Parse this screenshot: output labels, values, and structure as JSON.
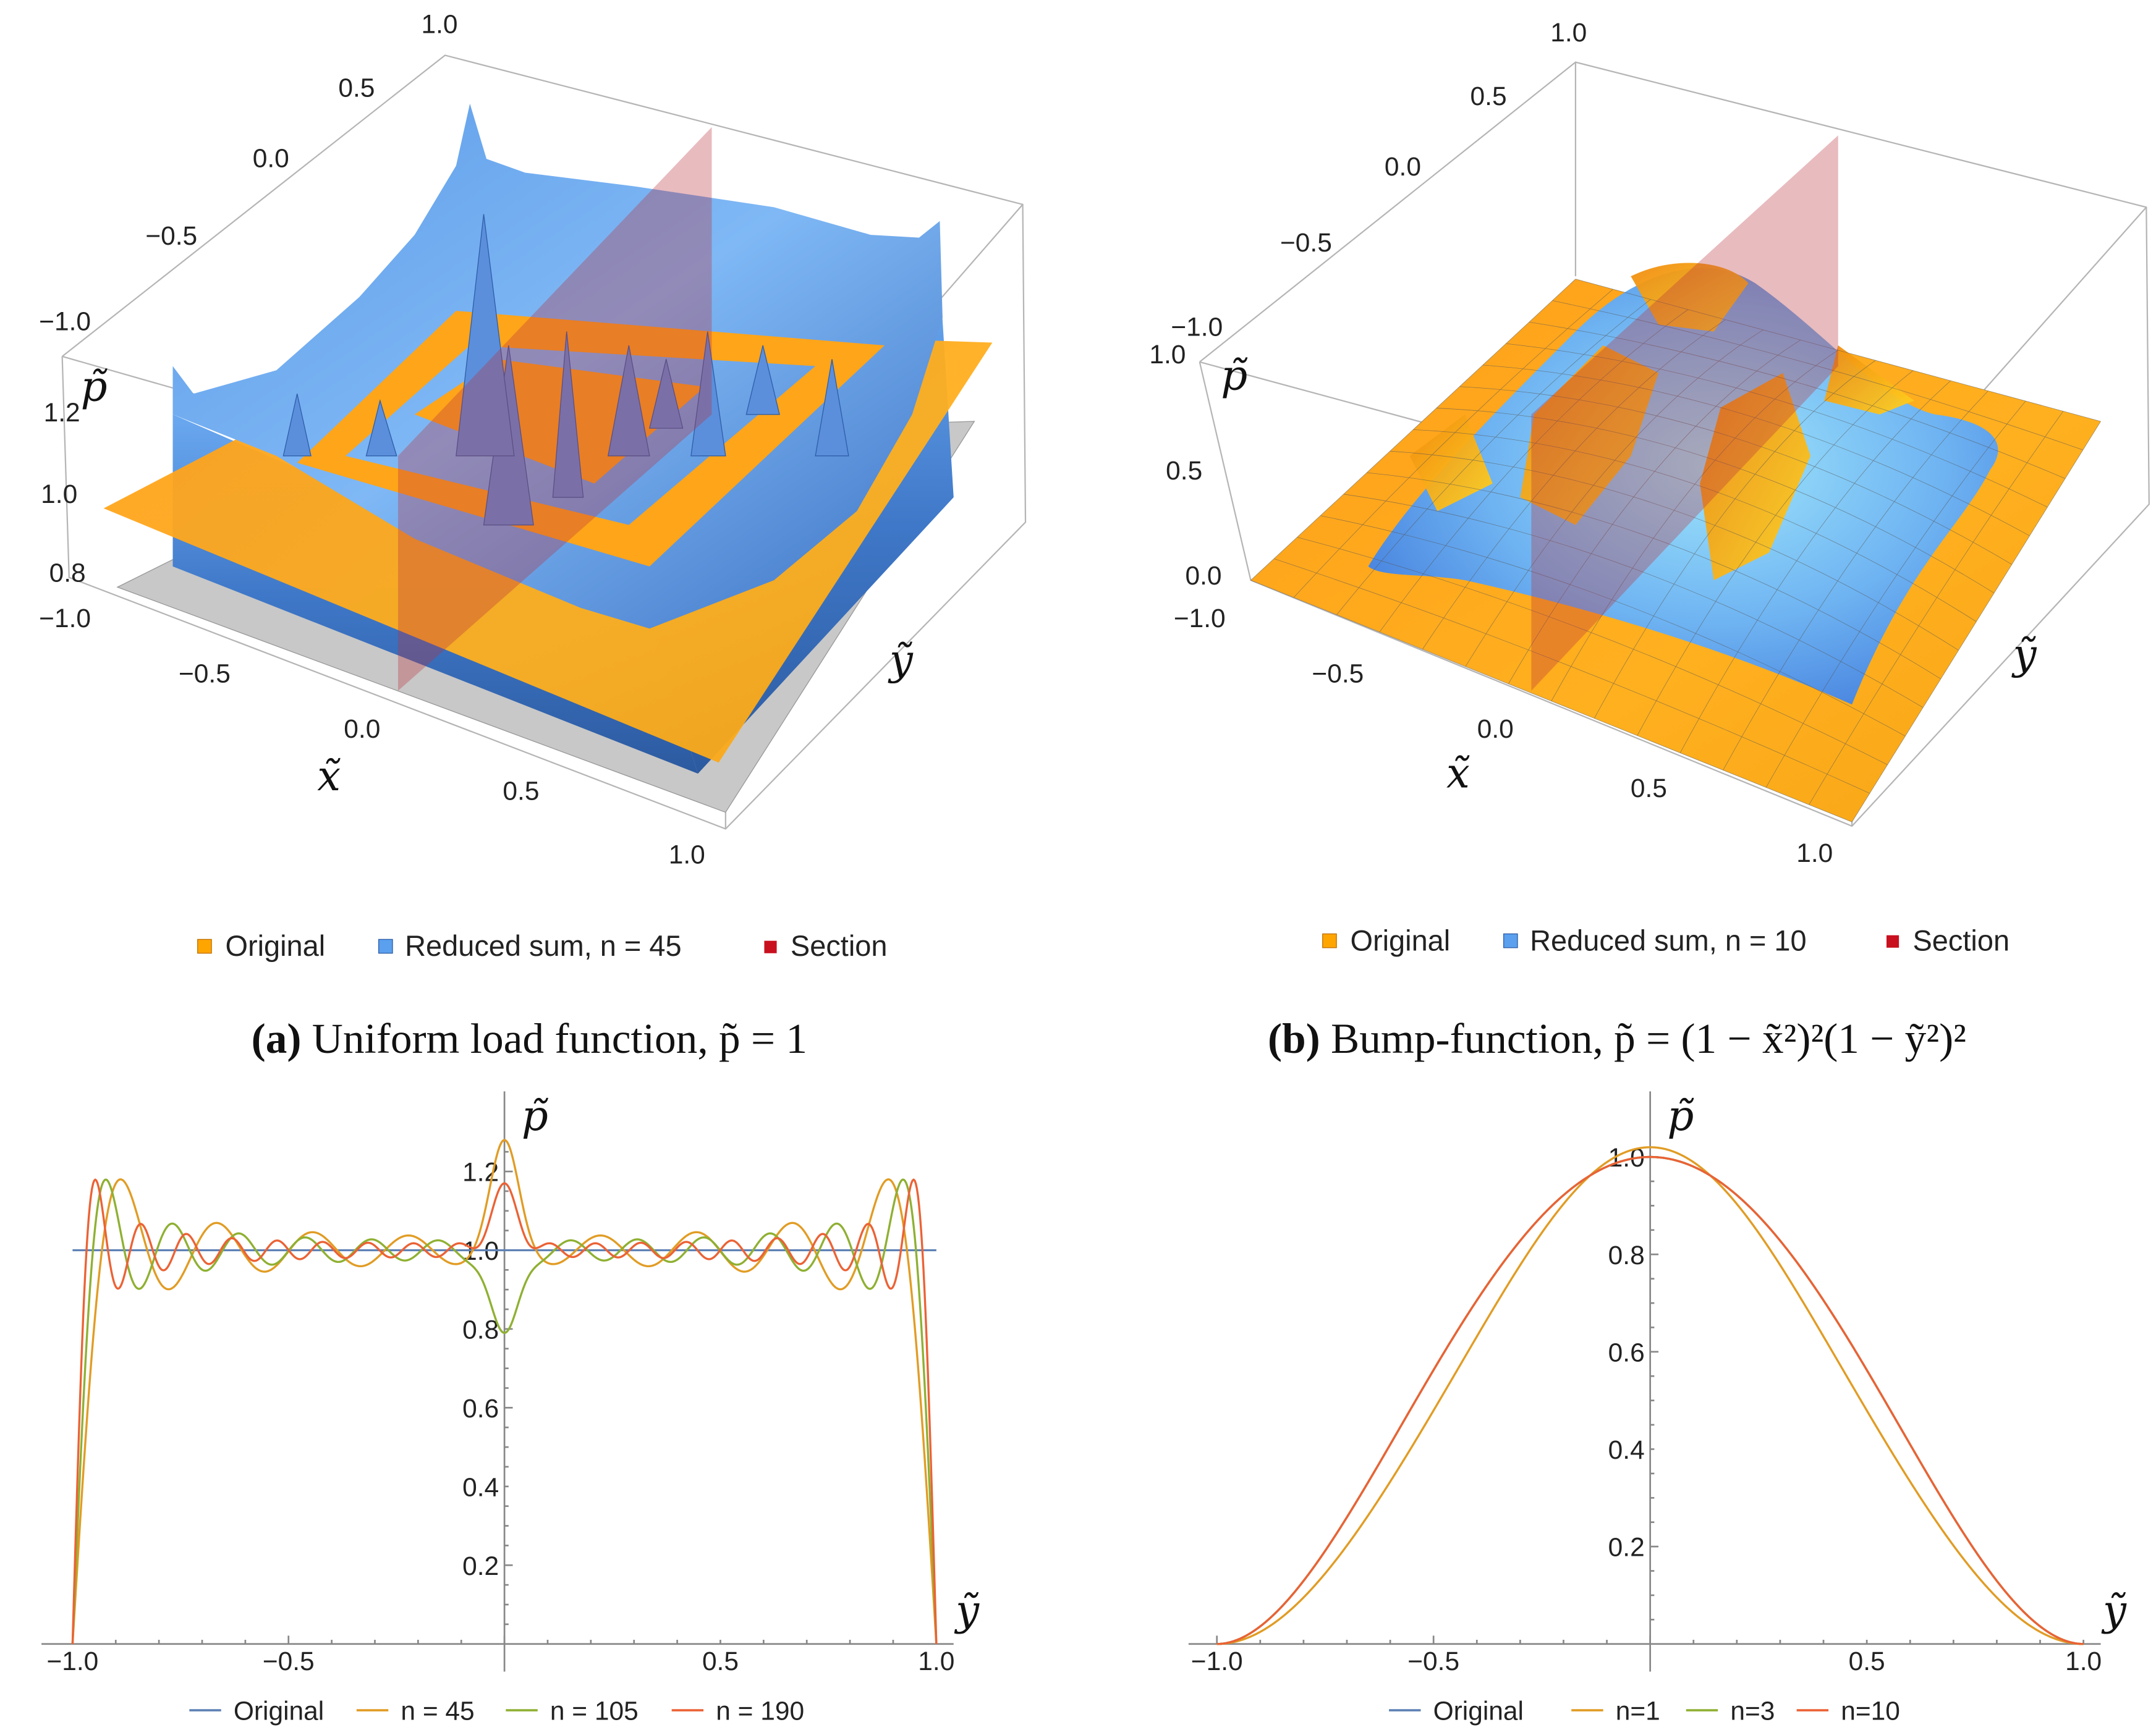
{
  "colors": {
    "original": "#5e81b5",
    "orange": "#e19c24",
    "green": "#8fb032",
    "red": "#eb6235",
    "surface_orange": "#ffa500",
    "surface_blue": "#4f8fe6",
    "section": "#c0303c",
    "floor": "#c8c8c8"
  },
  "panel_a": {
    "caption_label": "(a)",
    "caption_text": "Uniform load function, p̃ = 1",
    "axis_x": "x̃",
    "axis_y": "ỹ",
    "axis_z": "p̃",
    "x_ticks": [
      "−1.0",
      "−0.5",
      "0.0",
      "0.5",
      "1.0"
    ],
    "y_ticks": [
      "−1.0",
      "−0.5",
      "0.0",
      "0.5",
      "1.0"
    ],
    "z_ticks": [
      "0.8",
      "1.0",
      "1.2"
    ],
    "legend": [
      "Original",
      "Reduced sum, n = 45",
      "Section"
    ]
  },
  "panel_b": {
    "caption_label": "(b)",
    "caption_text": "Bump-function, p̃ = (1 − x̃²)²(1 − ỹ²)²",
    "axis_x": "x̃",
    "axis_y": "ỹ",
    "axis_z": "p̃",
    "x_ticks": [
      "−1.0",
      "−0.5",
      "0.0",
      "0.5",
      "1.0"
    ],
    "y_ticks": [
      "−1.0",
      "−0.5",
      "0.0",
      "0.5",
      "1.0"
    ],
    "z_ticks": [
      "0.0",
      "0.5",
      "1.0"
    ],
    "legend": [
      "Original",
      "Reduced sum, n = 10",
      "Section"
    ]
  },
  "chart_data": [
    {
      "type": "surface3d",
      "title": "Uniform load function, p̃ = 1",
      "xlabel": "x̃",
      "ylabel": "ỹ",
      "zlabel": "p̃",
      "xlim": [
        -1,
        1
      ],
      "ylim": [
        -1,
        1
      ],
      "zlim": [
        0.75,
        1.3
      ],
      "series": [
        {
          "name": "Original",
          "value": 1
        },
        {
          "name": "Reduced sum, n = 45"
        },
        {
          "name": "Section",
          "x": 0
        }
      ]
    },
    {
      "type": "surface3d",
      "title": "Bump-function",
      "xlabel": "x̃",
      "ylabel": "ỹ",
      "zlabel": "p̃",
      "xlim": [
        -1,
        1
      ],
      "ylim": [
        -1,
        1
      ],
      "zlim": [
        0,
        1
      ],
      "series": [
        {
          "name": "Original"
        },
        {
          "name": "Reduced sum, n = 10"
        },
        {
          "name": "Section",
          "x": 0
        }
      ]
    },
    {
      "type": "line",
      "xlabel": "ỹ",
      "ylabel": "p̃",
      "xlim": [
        -1,
        1
      ],
      "ylim": [
        0,
        1.3
      ],
      "x_ticks": [
        "−1.0",
        "−0.5",
        "0.5",
        "1.0"
      ],
      "x_tick_values": [
        -1,
        -0.5,
        0.5,
        1
      ],
      "y_ticks": [
        "0.2",
        "0.4",
        "0.6",
        "0.8",
        "1.0",
        "1.2"
      ],
      "y_tick_values": [
        0.2,
        0.4,
        0.6,
        0.8,
        1.0,
        1.2
      ],
      "legend_position": "bottom",
      "series": [
        {
          "name": "Original",
          "kind": "constant",
          "value": 1.0,
          "color": "#5e81b5"
        },
        {
          "name": "n = 45",
          "kind": "gibbs",
          "max_odd_term": 17,
          "center_value": 1.28,
          "edge_peak": 1.21,
          "color": "#e19c24"
        },
        {
          "name": "n = 105",
          "kind": "gibbs",
          "max_odd_term": 25,
          "center_value": 0.79,
          "edge_peak": 1.21,
          "color": "#8fb032"
        },
        {
          "name": "n = 190",
          "kind": "gibbs",
          "max_odd_term": 37,
          "center_value": 1.17,
          "edge_peak": 1.21,
          "color": "#eb6235"
        }
      ]
    },
    {
      "type": "line",
      "xlabel": "ỹ",
      "ylabel": "p̃",
      "xlim": [
        -1,
        1
      ],
      "ylim": [
        0,
        1.05
      ],
      "x_ticks": [
        "−1.0",
        "−0.5",
        "0.5",
        "1.0"
      ],
      "x_tick_values": [
        -1,
        -0.5,
        0.5,
        1
      ],
      "y_ticks": [
        "0.2",
        "0.4",
        "0.6",
        "0.8",
        "1.0"
      ],
      "y_tick_values": [
        0.2,
        0.4,
        0.6,
        0.8,
        1.0
      ],
      "legend_position": "bottom",
      "series": [
        {
          "name": "Original",
          "kind": "bump",
          "peak": 1.0,
          "color": "#5e81b5"
        },
        {
          "name": "n=1",
          "kind": "cos2",
          "peak": 1.02,
          "color": "#e19c24"
        },
        {
          "name": "n=3",
          "kind": "bump",
          "peak": 1.0,
          "color": "#8fb032"
        },
        {
          "name": "n=10",
          "kind": "bump",
          "peak": 1.0,
          "color": "#eb6235"
        }
      ]
    }
  ]
}
